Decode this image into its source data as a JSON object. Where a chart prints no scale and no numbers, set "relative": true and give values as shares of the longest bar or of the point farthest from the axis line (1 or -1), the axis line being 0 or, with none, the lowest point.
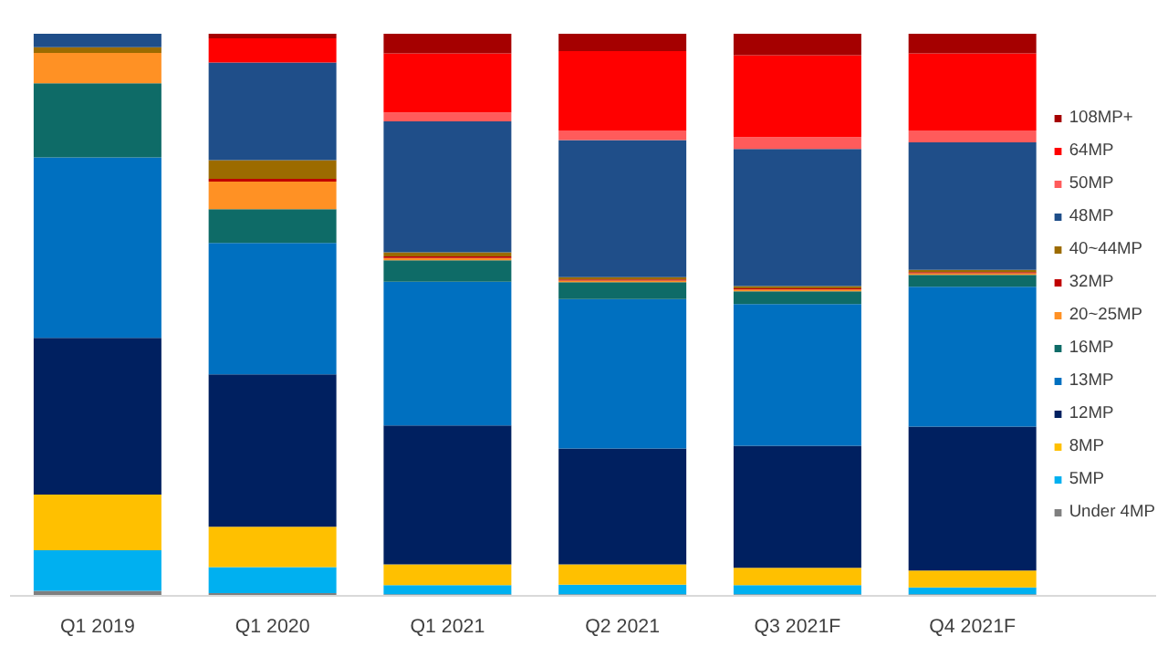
{
  "chart_data": {
    "type": "bar",
    "stacked": true,
    "relative": true,
    "legend": "right",
    "grid": false,
    "categories": [
      "Q1 2019",
      "Q1 2020",
      "Q1 2021",
      "Q2 2021",
      "Q3 2021F",
      "Q4 2021F"
    ],
    "series": [
      {
        "name": "Under 4MP",
        "color": "#7f7f7f",
        "values": [
          0.009,
          0.005,
          0.003,
          0.003,
          0.003,
          0.003
        ]
      },
      {
        "name": "5MP",
        "color": "#00b0f0",
        "values": [
          0.072,
          0.046,
          0.016,
          0.017,
          0.016,
          0.012
        ]
      },
      {
        "name": "8MP",
        "color": "#ffc000",
        "values": [
          0.099,
          0.072,
          0.037,
          0.036,
          0.031,
          0.03
        ]
      },
      {
        "name": "12MP",
        "color": "#002060",
        "values": [
          0.279,
          0.271,
          0.247,
          0.206,
          0.217,
          0.256
        ]
      },
      {
        "name": "13MP",
        "color": "#0070c0",
        "values": [
          0.321,
          0.234,
          0.256,
          0.266,
          0.252,
          0.249
        ]
      },
      {
        "name": "16MP",
        "color": "#0e6b67",
        "values": [
          0.132,
          0.06,
          0.038,
          0.03,
          0.023,
          0.021
        ]
      },
      {
        "name": "20~25MP",
        "color": "#ff9124",
        "values": [
          0.054,
          0.049,
          0.004,
          0.003,
          0.003,
          0.003
        ]
      },
      {
        "name": "32MP",
        "color": "#c00000",
        "values": [
          null,
          0.005,
          0.003,
          0.002,
          0.002,
          0.002
        ]
      },
      {
        "name": "40~44MP",
        "color": "#9c6b00",
        "values": [
          0.01,
          0.033,
          0.007,
          0.004,
          0.004,
          0.004
        ]
      },
      {
        "name": "48MP",
        "color": "#1f4e89",
        "values": [
          0.024,
          0.174,
          0.233,
          0.244,
          0.244,
          0.227
        ]
      },
      {
        "name": "50MP",
        "color": "#ff5b5b",
        "values": [
          null,
          null,
          0.016,
          0.017,
          0.021,
          0.021
        ]
      },
      {
        "name": "64MP",
        "color": "#ff0000",
        "values": [
          null,
          0.043,
          0.105,
          0.141,
          0.146,
          0.137
        ]
      },
      {
        "name": "108MP+",
        "color": "#a50000",
        "values": [
          null,
          0.008,
          0.035,
          0.031,
          0.038,
          0.035
        ]
      }
    ]
  }
}
